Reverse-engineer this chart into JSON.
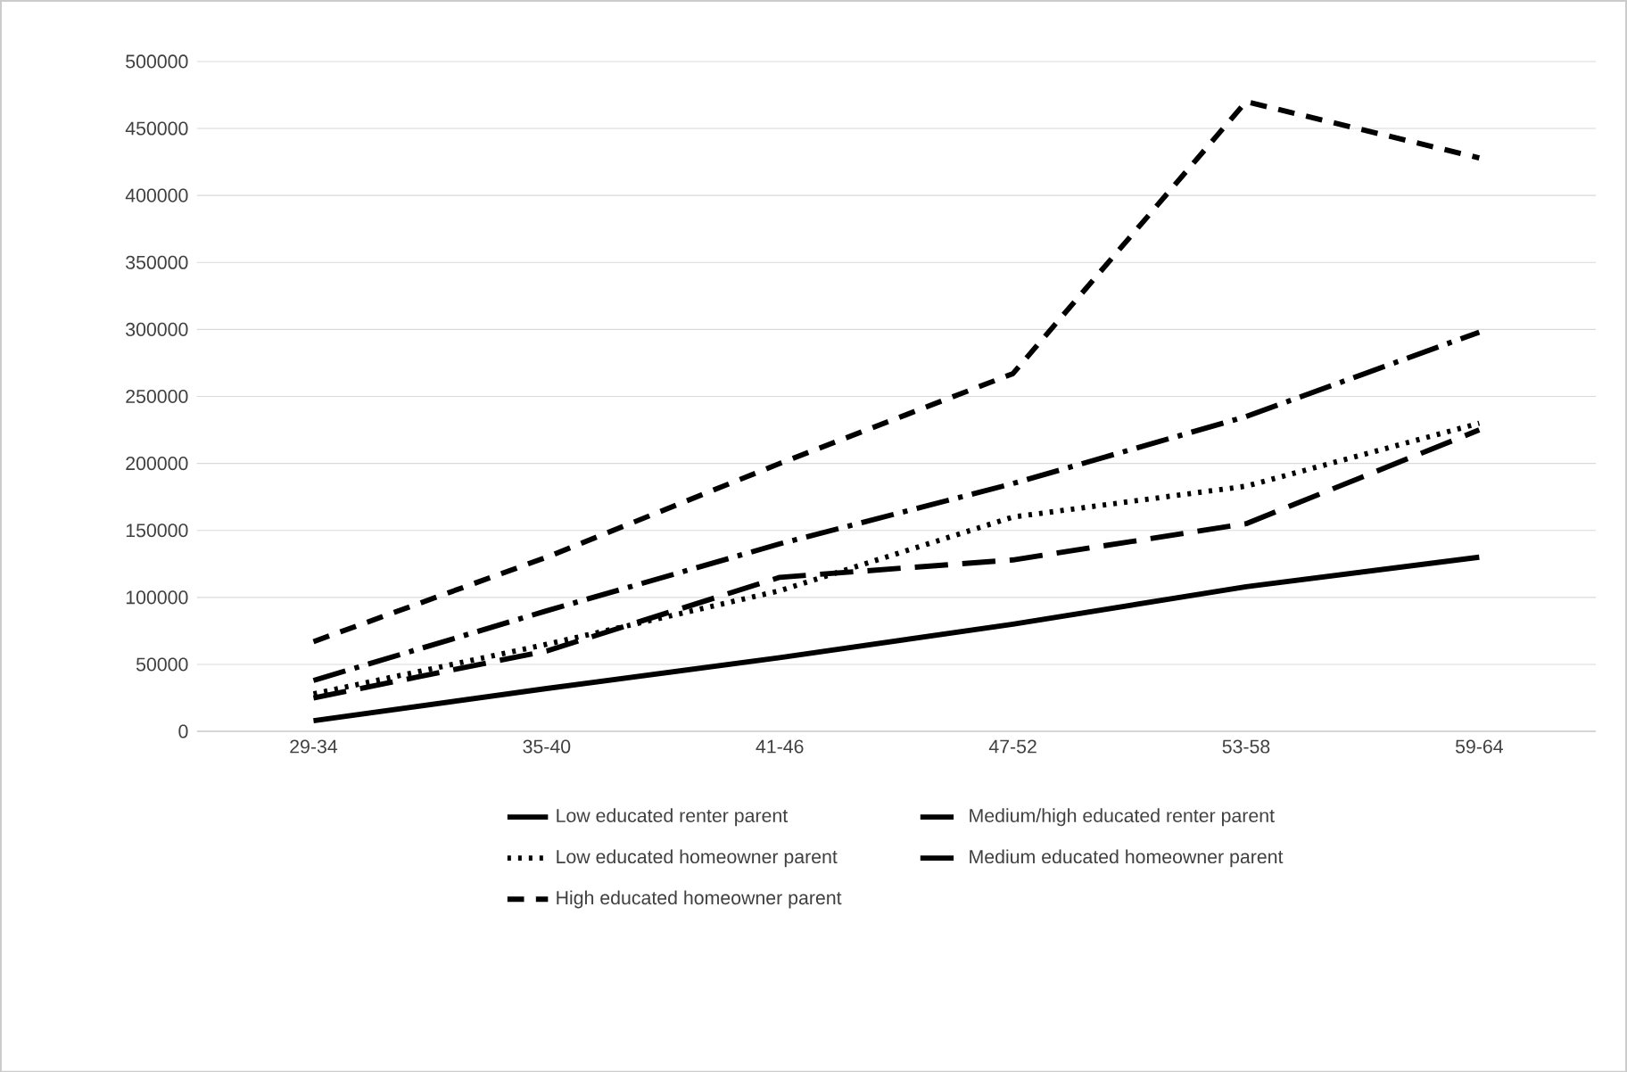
{
  "chart_data": {
    "type": "line",
    "categories": [
      "29-34",
      "35-40",
      "41-46",
      "47-52",
      "53-58",
      "59-64"
    ],
    "series": [
      {
        "name": "Low educated renter parent",
        "color": "#000000",
        "line_style": "solid",
        "values": [
          8000,
          32000,
          55000,
          80000,
          108000,
          130000
        ]
      },
      {
        "name": "Medium/high educated renter parent",
        "color": "#000000",
        "line_style": "longdashed",
        "values": [
          25000,
          60000,
          115000,
          128000,
          155000,
          225000
        ]
      },
      {
        "name": "Low educated homeowner parent",
        "color": "#000000",
        "line_style": "dotted",
        "values": [
          28000,
          65000,
          105000,
          160000,
          183000,
          230000
        ]
      },
      {
        "name": "Medium educated homeowner parent",
        "color": "#000000",
        "line_style": "dashdot",
        "values": [
          38000,
          90000,
          140000,
          185000,
          235000,
          298000
        ]
      },
      {
        "name": "High educated homeowner parent",
        "color": "#000000",
        "line_style": "dashed",
        "values": [
          67000,
          130000,
          200000,
          267000,
          470000,
          428000
        ]
      }
    ],
    "ylim": [
      0,
      500000
    ],
    "yticks": [
      0,
      50000,
      100000,
      150000,
      200000,
      250000,
      300000,
      350000,
      400000,
      450000,
      500000
    ],
    "grid": "y",
    "legend": "bottom",
    "marker": "none"
  }
}
